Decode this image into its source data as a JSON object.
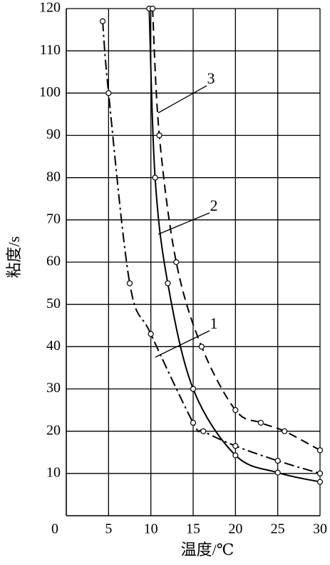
{
  "chart_data": {
    "type": "line",
    "x_label": "温度/℃",
    "y_label": "粘度/s",
    "xlim": [
      0,
      30
    ],
    "xticks": [
      0,
      5,
      10,
      15,
      20,
      25,
      30
    ],
    "ylim": [
      0,
      120
    ],
    "yticks": [
      10,
      20,
      30,
      40,
      50,
      60,
      70,
      80,
      90,
      100,
      110,
      120
    ],
    "grid": true,
    "series": [
      {
        "name": "1",
        "color": "#000000",
        "dash": "dashdot",
        "x": [
          4.3,
          5,
          7.5,
          10,
          15,
          16.2,
          20,
          25,
          30
        ],
        "values": [
          117,
          100,
          55,
          43,
          22,
          20,
          16.5,
          13,
          10
        ]
      },
      {
        "name": "2",
        "color": "#000000",
        "dash": "solid",
        "x": [
          9.8,
          10.5,
          12,
          15,
          20,
          25,
          30
        ],
        "values": [
          120,
          80,
          55,
          30,
          14.3,
          10.2,
          8
        ]
      },
      {
        "name": "3",
        "color": "#000000",
        "dash": "dashed",
        "x": [
          10.2,
          11,
          13,
          16,
          20,
          23,
          25.8,
          30
        ],
        "values": [
          120,
          90,
          60,
          40,
          25,
          22,
          20,
          15.5
        ]
      }
    ]
  }
}
